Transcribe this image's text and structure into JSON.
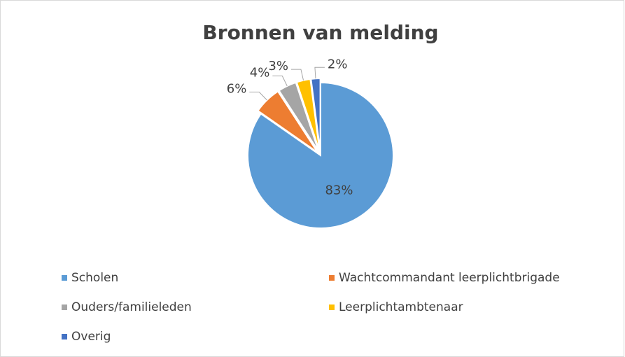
{
  "chart_data": {
    "type": "pie",
    "title": "Bronnen van melding",
    "categories": [
      "Scholen",
      "Wachtcommandant leerplichtbrigade",
      "Ouders/familieleden",
      "Leerplichtambtenaar",
      "Overig"
    ],
    "values": [
      83,
      6,
      4,
      3,
      2
    ],
    "value_labels": [
      "83%",
      "6%",
      "4%",
      "3%",
      "2%"
    ],
    "colors": [
      "#5b9bd5",
      "#ed7d31",
      "#a5a5a5",
      "#ffc000",
      "#4472c4"
    ],
    "legend": "bottom"
  }
}
